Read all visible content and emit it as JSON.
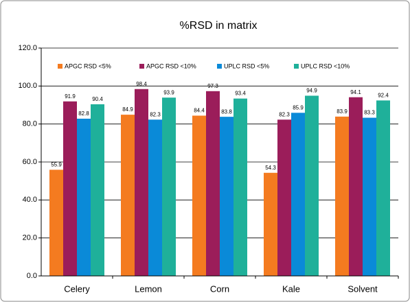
{
  "chart_data": {
    "type": "bar",
    "title": "%RSD in matrix",
    "categories": [
      "Celery",
      "Lemon",
      "Corn",
      "Kale",
      "Solvent"
    ],
    "series": [
      {
        "name": "APGC RSD <5%",
        "color": "#f47b20",
        "values": [
          55.9,
          84.9,
          84.4,
          54.3,
          83.9
        ]
      },
      {
        "name": "APGC RSD <10%",
        "color": "#9b1d5a",
        "values": [
          91.9,
          98.4,
          97.3,
          82.3,
          94.1
        ]
      },
      {
        "name": "UPLC RSD <5%",
        "color": "#0a8ad8",
        "values": [
          82.8,
          82.3,
          83.8,
          85.9,
          83.3
        ]
      },
      {
        "name": "UPLC RSD <10%",
        "color": "#1fb09a",
        "values": [
          90.4,
          93.9,
          93.4,
          94.9,
          92.4
        ]
      }
    ],
    "ylim": [
      0,
      120
    ],
    "yticks": [
      {
        "value": 0,
        "label": "0.0"
      },
      {
        "value": 20,
        "label": "20.0"
      },
      {
        "value": 40,
        "label": "40.0"
      },
      {
        "value": 60,
        "label": "60.0"
      },
      {
        "value": 80,
        "label": "80.0"
      },
      {
        "value": 100,
        "label": "100.0"
      },
      {
        "value": 120,
        "label": "120.0"
      }
    ],
    "grid": true
  }
}
